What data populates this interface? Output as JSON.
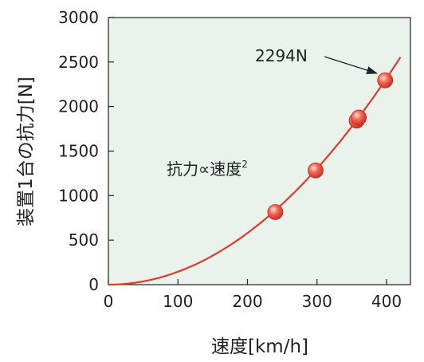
{
  "chart_data": {
    "type": "scatter",
    "xlabel": "速度[km/h]",
    "ylabel": "装置1台の抗力[N]",
    "xlim": [
      0,
      430
    ],
    "ylim": [
      0,
      3000
    ],
    "x_ticks": [
      "0",
      "100",
      "200",
      "300",
      "400"
    ],
    "x_tick_values": [
      0,
      100,
      200,
      300,
      400
    ],
    "y_ticks": [
      "0",
      "500",
      "1000",
      "1500",
      "2000",
      "2500",
      "3000"
    ],
    "y_tick_values": [
      0,
      500,
      1000,
      1500,
      2000,
      2500,
      3000
    ],
    "points": [
      {
        "x": 240,
        "y": 815
      },
      {
        "x": 298,
        "y": 1282
      },
      {
        "x": 357,
        "y": 1842
      },
      {
        "x": 360,
        "y": 1875
      },
      {
        "x": 398,
        "y": 2294
      }
    ],
    "curve": {
      "formula": "y = k·x²",
      "k": 0.01448,
      "x_range": [
        0,
        420
      ]
    },
    "annotation": {
      "text": "2294N",
      "points_to": {
        "x": 398,
        "y": 2294
      }
    },
    "formula_label": {
      "base": "抗力∝速度",
      "sup": "2"
    },
    "grid": false,
    "colors": {
      "plot_background": "#e9f3ec",
      "curve": "#e03a2a",
      "marker": "#e8402f",
      "marker_highlight": "#fde2dc",
      "axis": "#222222"
    }
  }
}
